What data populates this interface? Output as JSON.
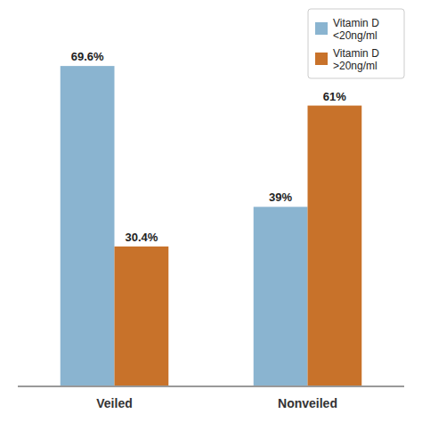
{
  "chart_data": {
    "type": "bar",
    "categories": [
      "Veiled",
      "Nonveiled"
    ],
    "series": [
      {
        "name": "Vitamin D\n<20ng/ml",
        "color": "#8ab4d0",
        "values": [
          69.6,
          39.0
        ],
        "value_labels": [
          "69.6%",
          "39%"
        ]
      },
      {
        "name": "Vitamin D\n>20ng/ml",
        "color": "#c8722a",
        "values": [
          30.4,
          61.0
        ],
        "value_labels": [
          "30.4%",
          "61%"
        ]
      }
    ],
    "ylim": [
      0,
      82
    ],
    "data_labels": true,
    "tick_labels": "x",
    "legend": "upper right"
  }
}
